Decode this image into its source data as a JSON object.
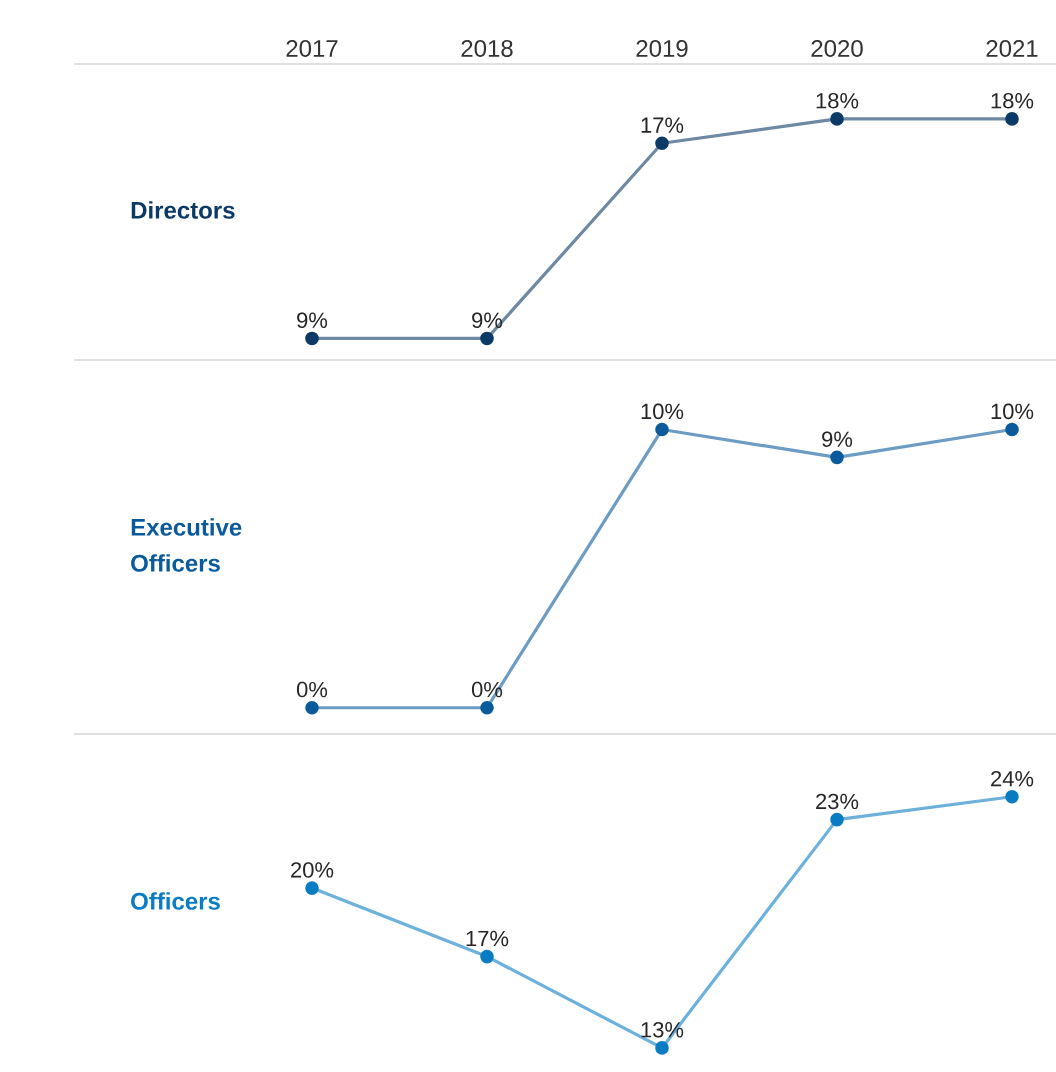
{
  "chart_data": [
    {
      "type": "line",
      "title": "Directors",
      "categories": [
        "2017",
        "2018",
        "2019",
        "2020",
        "2021"
      ],
      "series": [
        {
          "color": "#0b3a66",
          "values": [
            9,
            9,
            17,
            18,
            18
          ],
          "value_labels": [
            "9%",
            "9%",
            "17%",
            "18%",
            "18%"
          ]
        }
      ],
      "marker": "circle",
      "tick_labels": "x"
    },
    {
      "type": "line",
      "title": "Executive Officers",
      "categories": [
        "2017",
        "2018",
        "2019",
        "2020",
        "2021"
      ],
      "series": [
        {
          "color": "#0a5a9c",
          "values": [
            0,
            0,
            10,
            9,
            10
          ],
          "value_labels": [
            "0%",
            "0%",
            "10%",
            "9%",
            "10%"
          ]
        }
      ],
      "marker": "circle",
      "tick_labels": false
    },
    {
      "type": "line",
      "title": "Officers",
      "categories": [
        "2017",
        "2018",
        "2019",
        "2020",
        "2021"
      ],
      "series": [
        {
          "color": "#0a7cc4",
          "values": [
            20,
            17,
            13,
            23,
            24
          ],
          "value_labels": [
            "20%",
            "17%",
            "13%",
            "23%",
            "24%"
          ]
        }
      ],
      "marker": "circle",
      "tick_labels": false
    }
  ]
}
